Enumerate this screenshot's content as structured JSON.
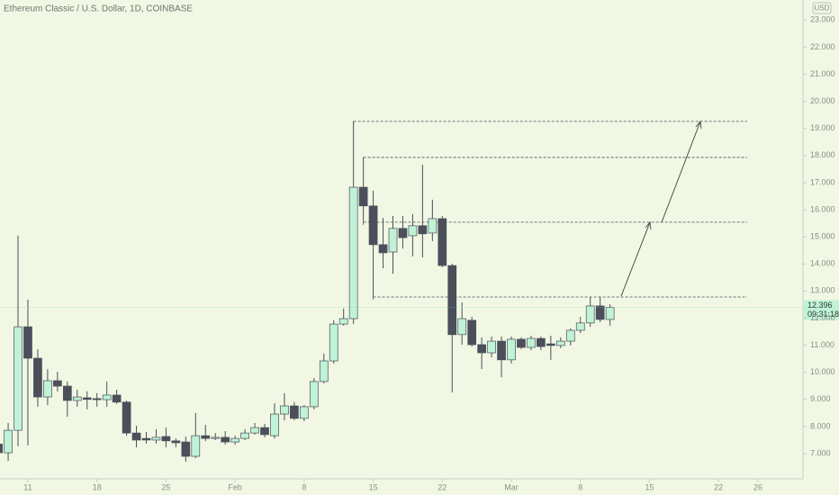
{
  "chart_data": {
    "type": "candlestick",
    "title": "Ethereum Classic / U.S. Dollar, 1D, COINBASE",
    "currency": "USD",
    "countdown": "09:31:18",
    "up_color": "#bff2d6",
    "down_color": "#4b4f5a",
    "wick_color": "#4b4f5a",
    "categories": [
      null,
      null,
      null,
      "11",
      null,
      null,
      null,
      null,
      null,
      null,
      "18",
      null,
      null,
      null,
      null,
      null,
      null,
      "25",
      null,
      null,
      null,
      null,
      null,
      null,
      "Feb",
      null,
      null,
      null,
      null,
      null,
      null,
      "8",
      null,
      null,
      null,
      null,
      null,
      null,
      "15",
      null,
      null,
      null,
      null,
      null,
      null,
      "22",
      null,
      null,
      null,
      null,
      null,
      null,
      "Mar",
      null,
      null,
      null,
      null,
      null,
      null,
      "8",
      null,
      null,
      null,
      null,
      null,
      null,
      "15",
      null,
      null,
      null,
      null,
      null,
      null,
      "22",
      null,
      null,
      null,
      "26"
    ],
    "open": [
      7.35,
      7.03,
      7.86,
      11.68,
      10.52,
      9.09,
      9.69,
      9.49,
      8.96,
      9.06,
      9.03,
      8.99,
      9.16,
      8.9,
      7.76,
      7.56,
      7.5,
      7.63,
      7.47,
      7.43,
      6.9,
      7.66,
      7.56,
      7.6,
      7.43,
      7.56,
      7.76,
      7.96,
      7.66,
      8.46,
      8.76,
      8.3,
      8.73,
      9.66,
      10.42,
      11.78,
      11.98,
      16.83,
      16.14,
      14.71,
      14.44,
      15.31,
      15.04,
      15.41,
      15.14,
      15.67,
      13.94,
      11.39,
      11.92,
      11.02,
      10.72,
      11.15,
      10.46,
      11.22,
      10.92,
      11.25,
      11.05,
      10.99,
      11.15,
      11.55,
      11.82,
      12.45,
      11.95,
      null,
      null,
      null,
      null,
      null,
      null,
      null,
      null,
      null,
      null,
      null,
      null,
      null,
      null,
      null
    ],
    "high": [
      7.45,
      8.13,
      15.04,
      12.68,
      10.85,
      10.12,
      10.02,
      9.66,
      9.36,
      9.3,
      9.23,
      9.66,
      9.36,
      8.95,
      8.03,
      7.8,
      7.9,
      7.96,
      7.56,
      7.63,
      8.5,
      8.06,
      7.76,
      7.83,
      7.66,
      7.9,
      8.13,
      8.1,
      8.86,
      9.23,
      8.9,
      8.79,
      9.79,
      10.69,
      11.92,
      12.35,
      19.26,
      17.93,
      16.7,
      15.7,
      15.77,
      15.77,
      15.84,
      17.66,
      16.37,
      15.77,
      14.01,
      12.58,
      12.05,
      11.29,
      11.32,
      11.32,
      11.32,
      11.29,
      11.35,
      11.32,
      11.35,
      11.29,
      11.62,
      12.05,
      12.78,
      12.78,
      12.51,
      null,
      null,
      null,
      null,
      null,
      null,
      null,
      null,
      null,
      null,
      null,
      null,
      null,
      null,
      null
    ],
    "low": [
      6.9,
      6.73,
      7.27,
      7.3,
      8.73,
      8.79,
      9.29,
      8.36,
      8.73,
      8.63,
      8.73,
      8.73,
      8.83,
      7.66,
      7.23,
      7.37,
      7.37,
      7.23,
      7.23,
      6.7,
      6.83,
      7.46,
      7.5,
      7.33,
      7.33,
      7.5,
      7.7,
      7.6,
      7.56,
      8.23,
      8.23,
      8.2,
      8.63,
      9.59,
      10.32,
      11.72,
      11.78,
      15.54,
      12.78,
      13.84,
      13.64,
      14.57,
      14.28,
      14.24,
      14.84,
      13.88,
      9.26,
      11.02,
      10.95,
      10.12,
      10.55,
      9.82,
      10.32,
      10.85,
      10.82,
      10.82,
      10.46,
      10.89,
      10.99,
      11.45,
      11.68,
      11.85,
      11.72,
      null,
      null,
      null,
      null,
      null,
      null,
      null,
      null,
      null,
      null,
      null,
      null,
      null,
      null,
      null
    ],
    "close": [
      7.03,
      7.86,
      11.68,
      10.52,
      9.09,
      9.69,
      9.49,
      8.96,
      9.09,
      9.0,
      8.99,
      9.16,
      8.9,
      7.76,
      7.5,
      7.5,
      7.6,
      7.47,
      7.4,
      6.9,
      7.66,
      7.56,
      7.6,
      7.43,
      7.56,
      7.76,
      7.96,
      7.7,
      8.46,
      8.76,
      8.3,
      8.73,
      9.66,
      10.42,
      11.78,
      11.98,
      16.83,
      16.14,
      14.71,
      14.41,
      15.31,
      14.97,
      15.41,
      15.11,
      15.67,
      13.94,
      11.39,
      11.98,
      11.02,
      10.72,
      11.15,
      10.46,
      11.22,
      10.92,
      11.25,
      10.95,
      10.99,
      11.15,
      11.55,
      11.82,
      12.45,
      11.95,
      12.396,
      null,
      null,
      null,
      null,
      null,
      null,
      null,
      null,
      null,
      null,
      null,
      null,
      null,
      null,
      null
    ],
    "ylim": [
      6.07,
      23.74
    ],
    "yticks": [
      {
        "value": 7,
        "label": "7.000"
      },
      {
        "value": 8,
        "label": "8.000"
      },
      {
        "value": 9,
        "label": "9.000"
      },
      {
        "value": 10,
        "label": "10.000"
      },
      {
        "value": 11,
        "label": "11.000"
      },
      {
        "value": 12,
        "label": "12.000"
      },
      {
        "value": 13,
        "label": "13.000"
      },
      {
        "value": 14,
        "label": "14.000"
      },
      {
        "value": 15,
        "label": "15.000"
      },
      {
        "value": 16,
        "label": "16.000"
      },
      {
        "value": 17,
        "label": "17.000"
      },
      {
        "value": 18,
        "label": "18.000"
      },
      {
        "value": 19,
        "label": "19.000"
      },
      {
        "value": 20,
        "label": "20.000"
      },
      {
        "value": 21,
        "label": "21.000"
      },
      {
        "value": 22,
        "label": "22.000"
      },
      {
        "value": 23,
        "label": "23.000"
      }
    ]
  }
}
